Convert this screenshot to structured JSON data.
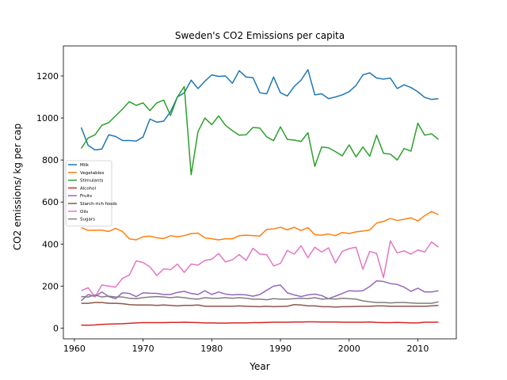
{
  "chart_data": {
    "type": "line",
    "title": "Sweden's CO2 Emissions per capita",
    "x_label": "Year",
    "y_label": "CO2 emissions/ kg per cap",
    "x": [
      1961,
      1962,
      1963,
      1964,
      1965,
      1966,
      1967,
      1968,
      1969,
      1970,
      1971,
      1972,
      1973,
      1974,
      1975,
      1976,
      1977,
      1978,
      1979,
      1980,
      1981,
      1982,
      1983,
      1984,
      1985,
      1986,
      1987,
      1988,
      1989,
      1990,
      1991,
      1992,
      1993,
      1994,
      1995,
      1996,
      1997,
      1998,
      1999,
      2000,
      2001,
      2002,
      2003,
      2004,
      2005,
      2006,
      2007,
      2008,
      2009,
      2010,
      2011,
      2012,
      2013
    ],
    "xlim": [
      1958.4,
      2015.6
    ],
    "xticks": [
      1960,
      1970,
      1980,
      1990,
      2000,
      2010
    ],
    "ylim": [
      -51,
      1343
    ],
    "yticks": [
      0,
      200,
      400,
      600,
      800,
      1000,
      1200
    ],
    "legend_position": "upper-left",
    "series": [
      {
        "name": "Milk",
        "color": "#1f77b4",
        "values": [
          955,
          870,
          848,
          852,
          920,
          912,
          893,
          893,
          890,
          910,
          995,
          980,
          985,
          1030,
          1100,
          1120,
          1180,
          1140,
          1175,
          1205,
          1198,
          1200,
          1165,
          1225,
          1195,
          1192,
          1120,
          1115,
          1195,
          1120,
          1105,
          1150,
          1180,
          1230,
          1110,
          1115,
          1092,
          1100,
          1110,
          1125,
          1155,
          1205,
          1215,
          1190,
          1185,
          1190,
          1140,
          1158,
          1145,
          1125,
          1098,
          1088,
          1092
        ]
      },
      {
        "name": "Vegetables",
        "color": "#ff7f0e",
        "values": [
          478,
          465,
          466,
          466,
          460,
          475,
          460,
          425,
          420,
          435,
          438,
          430,
          426,
          440,
          435,
          440,
          450,
          452,
          430,
          425,
          420,
          425,
          425,
          440,
          442,
          440,
          438,
          470,
          472,
          480,
          468,
          480,
          465,
          478,
          445,
          442,
          448,
          440,
          455,
          450,
          458,
          462,
          467,
          500,
          508,
          522,
          512,
          518,
          525,
          510,
          535,
          555,
          540
        ]
      },
      {
        "name": "Stimulants",
        "color": "#2ca02c",
        "values": [
          855,
          905,
          920,
          965,
          978,
          1010,
          1042,
          1078,
          1060,
          1072,
          1035,
          1072,
          1085,
          1012,
          1100,
          1150,
          730,
          935,
          1000,
          968,
          1010,
          965,
          940,
          918,
          920,
          955,
          952,
          910,
          892,
          958,
          898,
          895,
          888,
          930,
          770,
          862,
          858,
          840,
          820,
          872,
          815,
          862,
          818,
          918,
          832,
          828,
          800,
          855,
          842,
          975,
          918,
          925,
          898
        ]
      },
      {
        "name": "Alcohol",
        "color": "#d62728",
        "values": [
          14,
          14,
          15,
          18,
          19,
          20,
          21,
          23,
          25,
          26,
          26,
          26,
          26,
          27,
          27,
          28,
          27,
          26,
          25,
          25,
          24,
          24,
          25,
          25,
          25,
          26,
          26,
          27,
          28,
          28,
          28,
          29,
          29,
          30,
          30,
          29,
          29,
          29,
          28,
          28,
          28,
          28,
          29,
          27,
          26,
          26,
          27,
          26,
          25,
          25,
          28,
          28,
          28
        ]
      },
      {
        "name": "Fruits",
        "color": "#9467bd",
        "values": [
          130,
          160,
          150,
          172,
          150,
          140,
          168,
          165,
          150,
          168,
          166,
          165,
          160,
          160,
          170,
          175,
          165,
          160,
          178,
          160,
          172,
          162,
          158,
          160,
          158,
          152,
          160,
          180,
          200,
          205,
          168,
          158,
          150,
          158,
          162,
          155,
          140,
          152,
          165,
          178,
          176,
          178,
          198,
          225,
          222,
          212,
          208,
          195,
          175,
          190,
          172,
          172,
          178
        ]
      },
      {
        "name": "Starch-rich foods",
        "color": "#8c564b",
        "values": [
          118,
          118,
          122,
          122,
          118,
          118,
          116,
          112,
          110,
          110,
          110,
          108,
          110,
          108,
          106,
          108,
          108,
          110,
          104,
          104,
          104,
          104,
          104,
          106,
          104,
          103,
          102,
          104,
          102,
          103,
          104,
          112,
          110,
          106,
          106,
          102,
          102,
          100,
          102,
          102,
          103,
          104,
          104,
          106,
          106,
          104,
          104,
          104,
          104,
          104,
          104,
          106,
          108
        ]
      },
      {
        "name": "Oils",
        "color": "#e377c2",
        "values": [
          178,
          192,
          148,
          205,
          200,
          195,
          237,
          252,
          320,
          312,
          292,
          250,
          282,
          278,
          305,
          265,
          305,
          300,
          322,
          328,
          355,
          315,
          325,
          350,
          322,
          380,
          352,
          350,
          296,
          308,
          370,
          352,
          392,
          335,
          385,
          362,
          382,
          310,
          365,
          378,
          385,
          280,
          365,
          355,
          240,
          415,
          358,
          368,
          352,
          372,
          362,
          410,
          385
        ]
      },
      {
        "name": "Sugars",
        "color": "#7f7f7f",
        "values": [
          150,
          148,
          158,
          148,
          152,
          148,
          148,
          142,
          140,
          145,
          148,
          150,
          148,
          145,
          148,
          145,
          140,
          138,
          145,
          142,
          142,
          145,
          142,
          145,
          142,
          138,
          138,
          135,
          140,
          138,
          138,
          140,
          142,
          140,
          145,
          138,
          140,
          138,
          142,
          140,
          138,
          130,
          125,
          122,
          122,
          120,
          122,
          122,
          120,
          118,
          118,
          118,
          125
        ]
      }
    ]
  }
}
